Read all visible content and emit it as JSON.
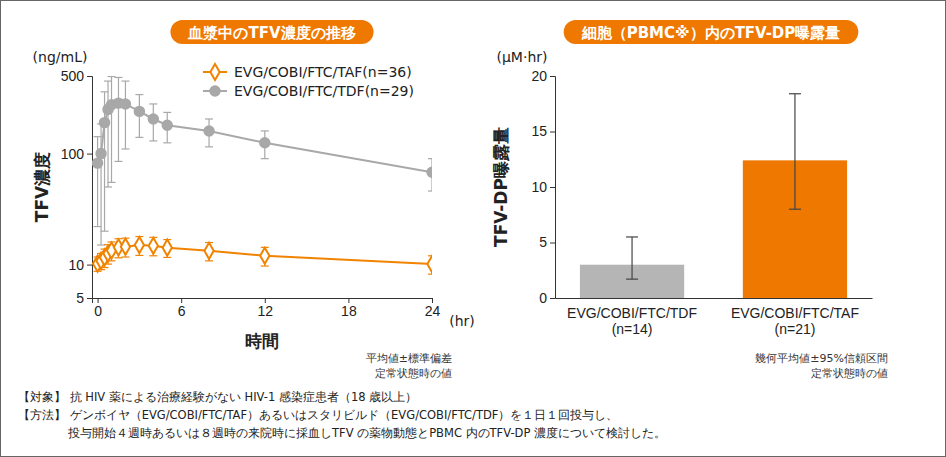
{
  "chart_data": [
    {
      "type": "line",
      "title": "血漿中のTFV濃度の推移",
      "x_label": "時間",
      "x_unit": "(hr)",
      "y_label": "TFV濃度",
      "y_unit": "(ng/mL)",
      "log": "y",
      "xlim": [
        -0.4,
        24
      ],
      "xticks": [
        0,
        6,
        12,
        18,
        24
      ],
      "ylim": [
        5,
        500
      ],
      "yticks": [
        5,
        10,
        100,
        500
      ],
      "legend": "top",
      "x": [
        0,
        0.25,
        0.5,
        0.75,
        1,
        1.5,
        2,
        3,
        4,
        5,
        8,
        12,
        24
      ],
      "series": [
        {
          "name": "EVG/COBI/FTC/TAF(n=36)",
          "color": "#f08300",
          "marker": "diamond",
          "values": [
            10.2,
            10.8,
            11.6,
            12.6,
            13.4,
            14.3,
            14.5,
            15,
            14.8,
            14.2,
            13.3,
            12,
            10.1
          ],
          "sd": [
            1.5,
            1.8,
            2.2,
            2.5,
            2.6,
            2.8,
            2.8,
            2.9,
            2.8,
            2.6,
            2.5,
            2.3,
            1.9
          ]
        },
        {
          "name": "EVG/COBI/FTC/TDF(n=29)",
          "color": "#a8a8a8",
          "marker": "circle",
          "values": [
            82,
            100,
            190,
            250,
            275,
            285,
            280,
            240,
            205,
            180,
            160,
            125,
            68
          ],
          "sd": [
            60,
            85,
            170,
            200,
            220,
            200,
            170,
            100,
            75,
            55,
            45,
            35,
            22
          ]
        }
      ],
      "notes": [
        "平均値±標準偏差",
        "定常状態時の値"
      ]
    },
    {
      "type": "bar",
      "title": "細胞（PBMC※）内のTFV-DP曝露量",
      "y_label": "TFV-DP曝露量",
      "y_unit": "(μM·hr)",
      "ylim": [
        0,
        20
      ],
      "yticks": [
        0,
        5,
        10,
        15,
        20
      ],
      "categories": [
        "EVG/COBI/FTC/TDF\n(n=14)",
        "EVG/COBI/FTC/TAF\n(n=21)"
      ],
      "values": [
        3,
        12.4
      ],
      "ci_low": [
        1.7,
        8.0
      ],
      "ci_high": [
        5.5,
        18.4
      ],
      "colors": [
        "#b5b5b6",
        "#ee7800"
      ],
      "notes": [
        "幾何平均値±95%信頼区間",
        "定常状態時の値"
      ]
    }
  ],
  "footer": [
    "【対象】 抗 HIV 薬による治療経験がない HIV-1 感染症患者（18 歳以上）",
    "【方法】 ゲンボイヤ（EVG/COBI/FTC/TAF）あるいはスタリビルド（EVG/COBI/FTC/TDF）を１日１回投与し、",
    "投与開始４週時あるいは８週時の来院時に採血しTFV の薬物動態とPBMC 内のTFV-DP 濃度について検討した。"
  ]
}
